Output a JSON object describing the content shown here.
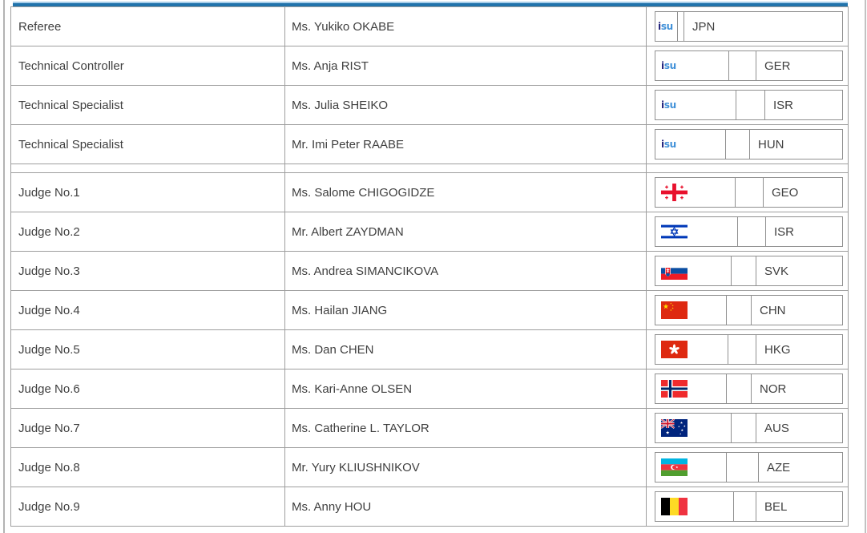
{
  "branding": {
    "isu_logo": {
      "part1": "i",
      "part2": "su"
    }
  },
  "colors": {
    "accent_bar_top": "#a6cce8",
    "accent_bar": "#2173ab",
    "table_border": "#9e9e9e",
    "box_border": "#909090",
    "text": "#3f3f3f",
    "isu_logo_dark": "#26267e",
    "isu_logo_blue": "#4090d8"
  },
  "officials": [
    {
      "role": "Referee",
      "name": "Ms. Yukiko OKABE",
      "emblem": "isu-logo",
      "noc": "JPN"
    },
    {
      "role": "Technical Controller",
      "name": "Ms. Anja RIST",
      "emblem": "isu-logo",
      "noc": "GER"
    },
    {
      "role": "Technical Specialist",
      "name": "Ms. Julia SHEIKO",
      "emblem": "isu-logo",
      "noc": "ISR"
    },
    {
      "role": "Technical Specialist",
      "name": "Mr. Imi Peter RAABE",
      "emblem": "isu-logo",
      "noc": "HUN"
    }
  ],
  "judges": [
    {
      "role": "Judge No.1",
      "name": "Ms. Salome CHIGOGIDZE",
      "emblem": "flag-georgia",
      "noc": "GEO"
    },
    {
      "role": "Judge No.2",
      "name": "Mr. Albert ZAYDMAN",
      "emblem": "flag-israel",
      "noc": "ISR"
    },
    {
      "role": "Judge No.3",
      "name": "Ms. Andrea SIMANCIKOVA",
      "emblem": "flag-slovakia",
      "noc": "SVK"
    },
    {
      "role": "Judge No.4",
      "name": "Ms. Hailan JIANG",
      "emblem": "flag-china",
      "noc": "CHN"
    },
    {
      "role": "Judge No.5",
      "name": "Ms. Dan CHEN",
      "emblem": "flag-hong-kong",
      "noc": "HKG"
    },
    {
      "role": "Judge No.6",
      "name": "Ms. Kari-Anne OLSEN",
      "emblem": "flag-norway",
      "noc": "NOR"
    },
    {
      "role": "Judge No.7",
      "name": "Ms. Catherine L. TAYLOR",
      "emblem": "flag-australia",
      "noc": "AUS"
    },
    {
      "role": "Judge No.8",
      "name": "Mr. Yury KLIUSHNIKOV",
      "emblem": "flag-azerbaijan",
      "noc": "AZE"
    },
    {
      "role": "Judge No.9",
      "name": "Ms. Anny HOU",
      "emblem": "flag-belgium",
      "noc": "BEL"
    }
  ]
}
